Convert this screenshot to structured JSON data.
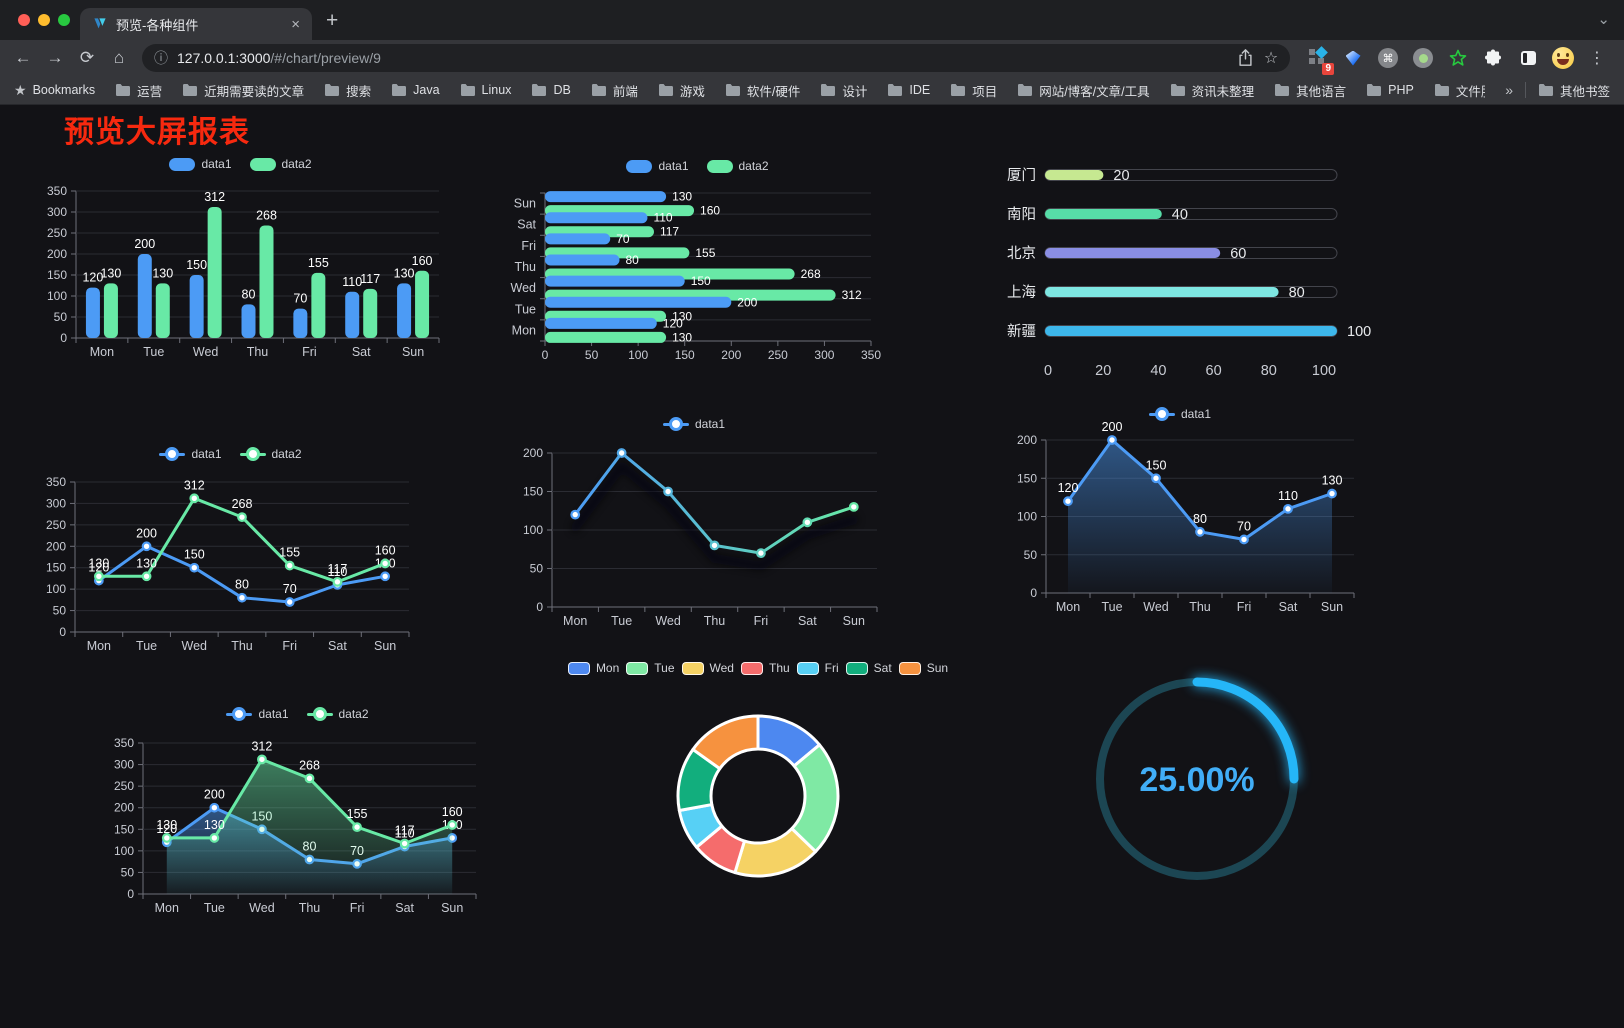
{
  "browser": {
    "tab": {
      "title": "预览-各种组件",
      "close_glyph": "×",
      "new_tab_glyph": "+",
      "chevron_glyph": "⌄"
    },
    "address": {
      "host": "127.0.0.1:3000",
      "path": "/#/chart/preview/9",
      "info_glyph": "ⓘ"
    },
    "toolbar": {
      "back_glyph": "←",
      "forward_glyph": "→",
      "reload_glyph": "⟳",
      "home_glyph": "⌂",
      "bookmark_star_glyph": "☆",
      "menu_glyph": "⋮",
      "command_glyph": "⌘",
      "extension_badge": "9"
    },
    "bookmarks_bar": {
      "star_label": "Bookmarks",
      "folders": [
        "运营",
        "近期需要读的文章",
        "搜索",
        "Java",
        "Linux",
        "DB",
        "前端",
        "游戏",
        "软件/硬件",
        "设计",
        "IDE",
        "项目",
        "网站/博客/文章/工具",
        "资讯未整理",
        "其他语言",
        "PHP",
        "文件服务器"
      ],
      "overflow_glyph": "»",
      "other_bookmarks": "其他书签"
    }
  },
  "page": {
    "title": "预览大屏报表",
    "title_color": "#F7290F"
  },
  "chart_data": [
    {
      "id": "grouped-bar",
      "type": "bar",
      "legend": "bar",
      "value_labels": true,
      "categories": [
        "Mon",
        "Tue",
        "Wed",
        "Thu",
        "Fri",
        "Sat",
        "Sun"
      ],
      "series": [
        {
          "name": "data1",
          "color": "#4C9BF5",
          "values": [
            120,
            200,
            150,
            80,
            70,
            110,
            130
          ]
        },
        {
          "name": "data2",
          "color": "#68E9A6",
          "values": [
            130,
            130,
            312,
            268,
            155,
            117,
            160
          ]
        }
      ],
      "ylim": [
        0,
        350
      ],
      "yticks": [
        0,
        50,
        100,
        150,
        200,
        250,
        300,
        350
      ]
    },
    {
      "id": "grouped-hbar",
      "type": "hbar",
      "legend": "bar",
      "value_labels": true,
      "categories": [
        "Mon",
        "Tue",
        "Wed",
        "Thu",
        "Fri",
        "Sat",
        "Sun"
      ],
      "series": [
        {
          "name": "data1",
          "color": "#4C9BF5",
          "values": [
            120,
            200,
            150,
            80,
            70,
            110,
            130
          ]
        },
        {
          "name": "data2",
          "color": "#68E9A6",
          "values": [
            130,
            130,
            312,
            268,
            155,
            117,
            160
          ]
        }
      ],
      "xlim": [
        0,
        350
      ],
      "xticks": [
        0,
        50,
        100,
        150,
        200,
        250,
        300,
        350
      ]
    },
    {
      "id": "city-progress",
      "type": "progress",
      "max": 100,
      "xticks": [
        0,
        20,
        40,
        60,
        80,
        100
      ],
      "rows": [
        {
          "label": "厦门",
          "value": 20,
          "color": "#C6E891"
        },
        {
          "label": "南阳",
          "value": 40,
          "color": "#57DDA8"
        },
        {
          "label": "北京",
          "value": 60,
          "color": "#8A8EE4"
        },
        {
          "label": "上海",
          "value": 80,
          "color": "#7EE6E2"
        },
        {
          "label": "新疆",
          "value": 100,
          "color": "#3DB7EB"
        }
      ]
    },
    {
      "id": "multi-line",
      "type": "line",
      "legend": "line",
      "value_labels": true,
      "categories": [
        "Mon",
        "Tue",
        "Wed",
        "Thu",
        "Fri",
        "Sat",
        "Sun"
      ],
      "series": [
        {
          "name": "data1",
          "color": "#4C9BF5",
          "values": [
            120,
            200,
            150,
            80,
            70,
            110,
            130
          ]
        },
        {
          "name": "data2",
          "color": "#68E9A6",
          "values": [
            130,
            130,
            312,
            268,
            155,
            117,
            160
          ]
        }
      ],
      "ylim": [
        0,
        350
      ],
      "yticks": [
        0,
        50,
        100,
        150,
        200,
        250,
        300,
        350
      ]
    },
    {
      "id": "gradient-line",
      "type": "line",
      "legend": "line",
      "value_labels": false,
      "gradient_stroke": true,
      "shadow": true,
      "categories": [
        "Mon",
        "Tue",
        "Wed",
        "Thu",
        "Fri",
        "Sat",
        "Sun"
      ],
      "series": [
        {
          "name": "data1",
          "color": "#4C9BF5",
          "color_end": "#68E9A6",
          "values": [
            120,
            200,
            150,
            80,
            70,
            110,
            130
          ]
        }
      ],
      "ylim": [
        0,
        200
      ],
      "yticks": [
        0,
        50,
        100,
        150,
        200
      ]
    },
    {
      "id": "area-line",
      "type": "line",
      "legend": "line",
      "value_labels": true,
      "area": true,
      "categories": [
        "Mon",
        "Tue",
        "Wed",
        "Thu",
        "Fri",
        "Sat",
        "Sun"
      ],
      "series": [
        {
          "name": "data1",
          "color": "#4C9BF5",
          "values": [
            120,
            200,
            150,
            80,
            70,
            110,
            130
          ]
        }
      ],
      "ylim": [
        0,
        200
      ],
      "yticks": [
        0,
        50,
        100,
        150,
        200
      ]
    },
    {
      "id": "multi-area-line",
      "type": "line",
      "legend": "line",
      "value_labels": true,
      "area": true,
      "categories": [
        "Mon",
        "Tue",
        "Wed",
        "Thu",
        "Fri",
        "Sat",
        "Sun"
      ],
      "series": [
        {
          "name": "data1",
          "color": "#4C9BF5",
          "values": [
            120,
            200,
            150,
            80,
            70,
            110,
            130
          ]
        },
        {
          "name": "data2",
          "color": "#68E9A6",
          "values": [
            130,
            130,
            312,
            268,
            155,
            117,
            160
          ]
        }
      ],
      "ylim": [
        0,
        350
      ],
      "yticks": [
        0,
        50,
        100,
        150,
        200,
        250,
        300,
        350
      ]
    },
    {
      "id": "week-donut",
      "type": "pie",
      "legend": "pie",
      "categories": [
        "Mon",
        "Tue",
        "Wed",
        "Thu",
        "Fri",
        "Sat",
        "Sun"
      ],
      "values": [
        120,
        200,
        150,
        80,
        70,
        110,
        130
      ],
      "colors": [
        "#4D88F0",
        "#7FE9A4",
        "#F5D264",
        "#F56C6C",
        "#57D0F5",
        "#12AE7D",
        "#F6923F"
      ]
    },
    {
      "id": "percent-gauge",
      "type": "gauge",
      "value": 25,
      "max": 100,
      "label": "25.00%",
      "color": "#25B6F8",
      "track_color": "#1C4653",
      "text_color": "#41AEF7"
    }
  ]
}
